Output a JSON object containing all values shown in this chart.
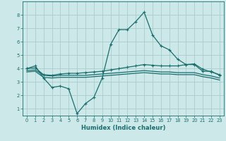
{
  "xlabel": "Humidex (Indice chaleur)",
  "background_color": "#cce8e8",
  "grid_color": "#aacccc",
  "line_color": "#1a6e6e",
  "xlim": [
    -0.5,
    23.5
  ],
  "ylim": [
    0.5,
    9.0
  ],
  "yticks": [
    1,
    2,
    3,
    4,
    5,
    6,
    7,
    8
  ],
  "xticks": [
    0,
    1,
    2,
    3,
    4,
    5,
    6,
    7,
    8,
    9,
    10,
    11,
    12,
    13,
    14,
    15,
    16,
    17,
    18,
    19,
    20,
    21,
    22,
    23
  ],
  "series": [
    {
      "x": [
        0,
        1,
        2,
        3,
        4,
        5,
        6,
        7,
        8,
        9,
        10,
        11,
        12,
        13,
        14,
        15,
        16,
        17,
        18,
        19,
        20,
        21,
        22,
        23
      ],
      "y": [
        4.0,
        4.2,
        3.3,
        2.6,
        2.7,
        2.5,
        0.65,
        1.4,
        1.85,
        3.3,
        5.8,
        6.9,
        6.9,
        7.5,
        8.2,
        6.5,
        5.7,
        5.4,
        4.7,
        4.3,
        4.3,
        3.8,
        3.8,
        3.5
      ],
      "marker": true
    },
    {
      "x": [
        0,
        1,
        2,
        3,
        4,
        5,
        6,
        7,
        8,
        9,
        10,
        11,
        12,
        13,
        14,
        15,
        16,
        17,
        18,
        19,
        20,
        21,
        22,
        23
      ],
      "y": [
        4.0,
        4.05,
        3.55,
        3.5,
        3.6,
        3.65,
        3.65,
        3.7,
        3.75,
        3.8,
        3.9,
        4.0,
        4.1,
        4.2,
        4.3,
        4.25,
        4.2,
        4.2,
        4.2,
        4.3,
        4.35,
        3.95,
        3.75,
        3.55
      ],
      "marker": true
    },
    {
      "x": [
        0,
        1,
        2,
        3,
        4,
        5,
        6,
        7,
        8,
        9,
        10,
        11,
        12,
        13,
        14,
        15,
        16,
        17,
        18,
        19,
        20,
        21,
        22,
        23
      ],
      "y": [
        3.85,
        3.9,
        3.5,
        3.45,
        3.5,
        3.5,
        3.5,
        3.5,
        3.55,
        3.6,
        3.65,
        3.7,
        3.75,
        3.8,
        3.85,
        3.8,
        3.75,
        3.75,
        3.7,
        3.7,
        3.7,
        3.55,
        3.45,
        3.3
      ],
      "marker": false
    },
    {
      "x": [
        0,
        1,
        2,
        3,
        4,
        5,
        6,
        7,
        8,
        9,
        10,
        11,
        12,
        13,
        14,
        15,
        16,
        17,
        18,
        19,
        20,
        21,
        22,
        23
      ],
      "y": [
        3.75,
        3.8,
        3.35,
        3.3,
        3.35,
        3.35,
        3.35,
        3.35,
        3.4,
        3.45,
        3.5,
        3.55,
        3.6,
        3.65,
        3.7,
        3.65,
        3.6,
        3.6,
        3.55,
        3.55,
        3.55,
        3.4,
        3.3,
        3.15
      ],
      "marker": false
    }
  ]
}
